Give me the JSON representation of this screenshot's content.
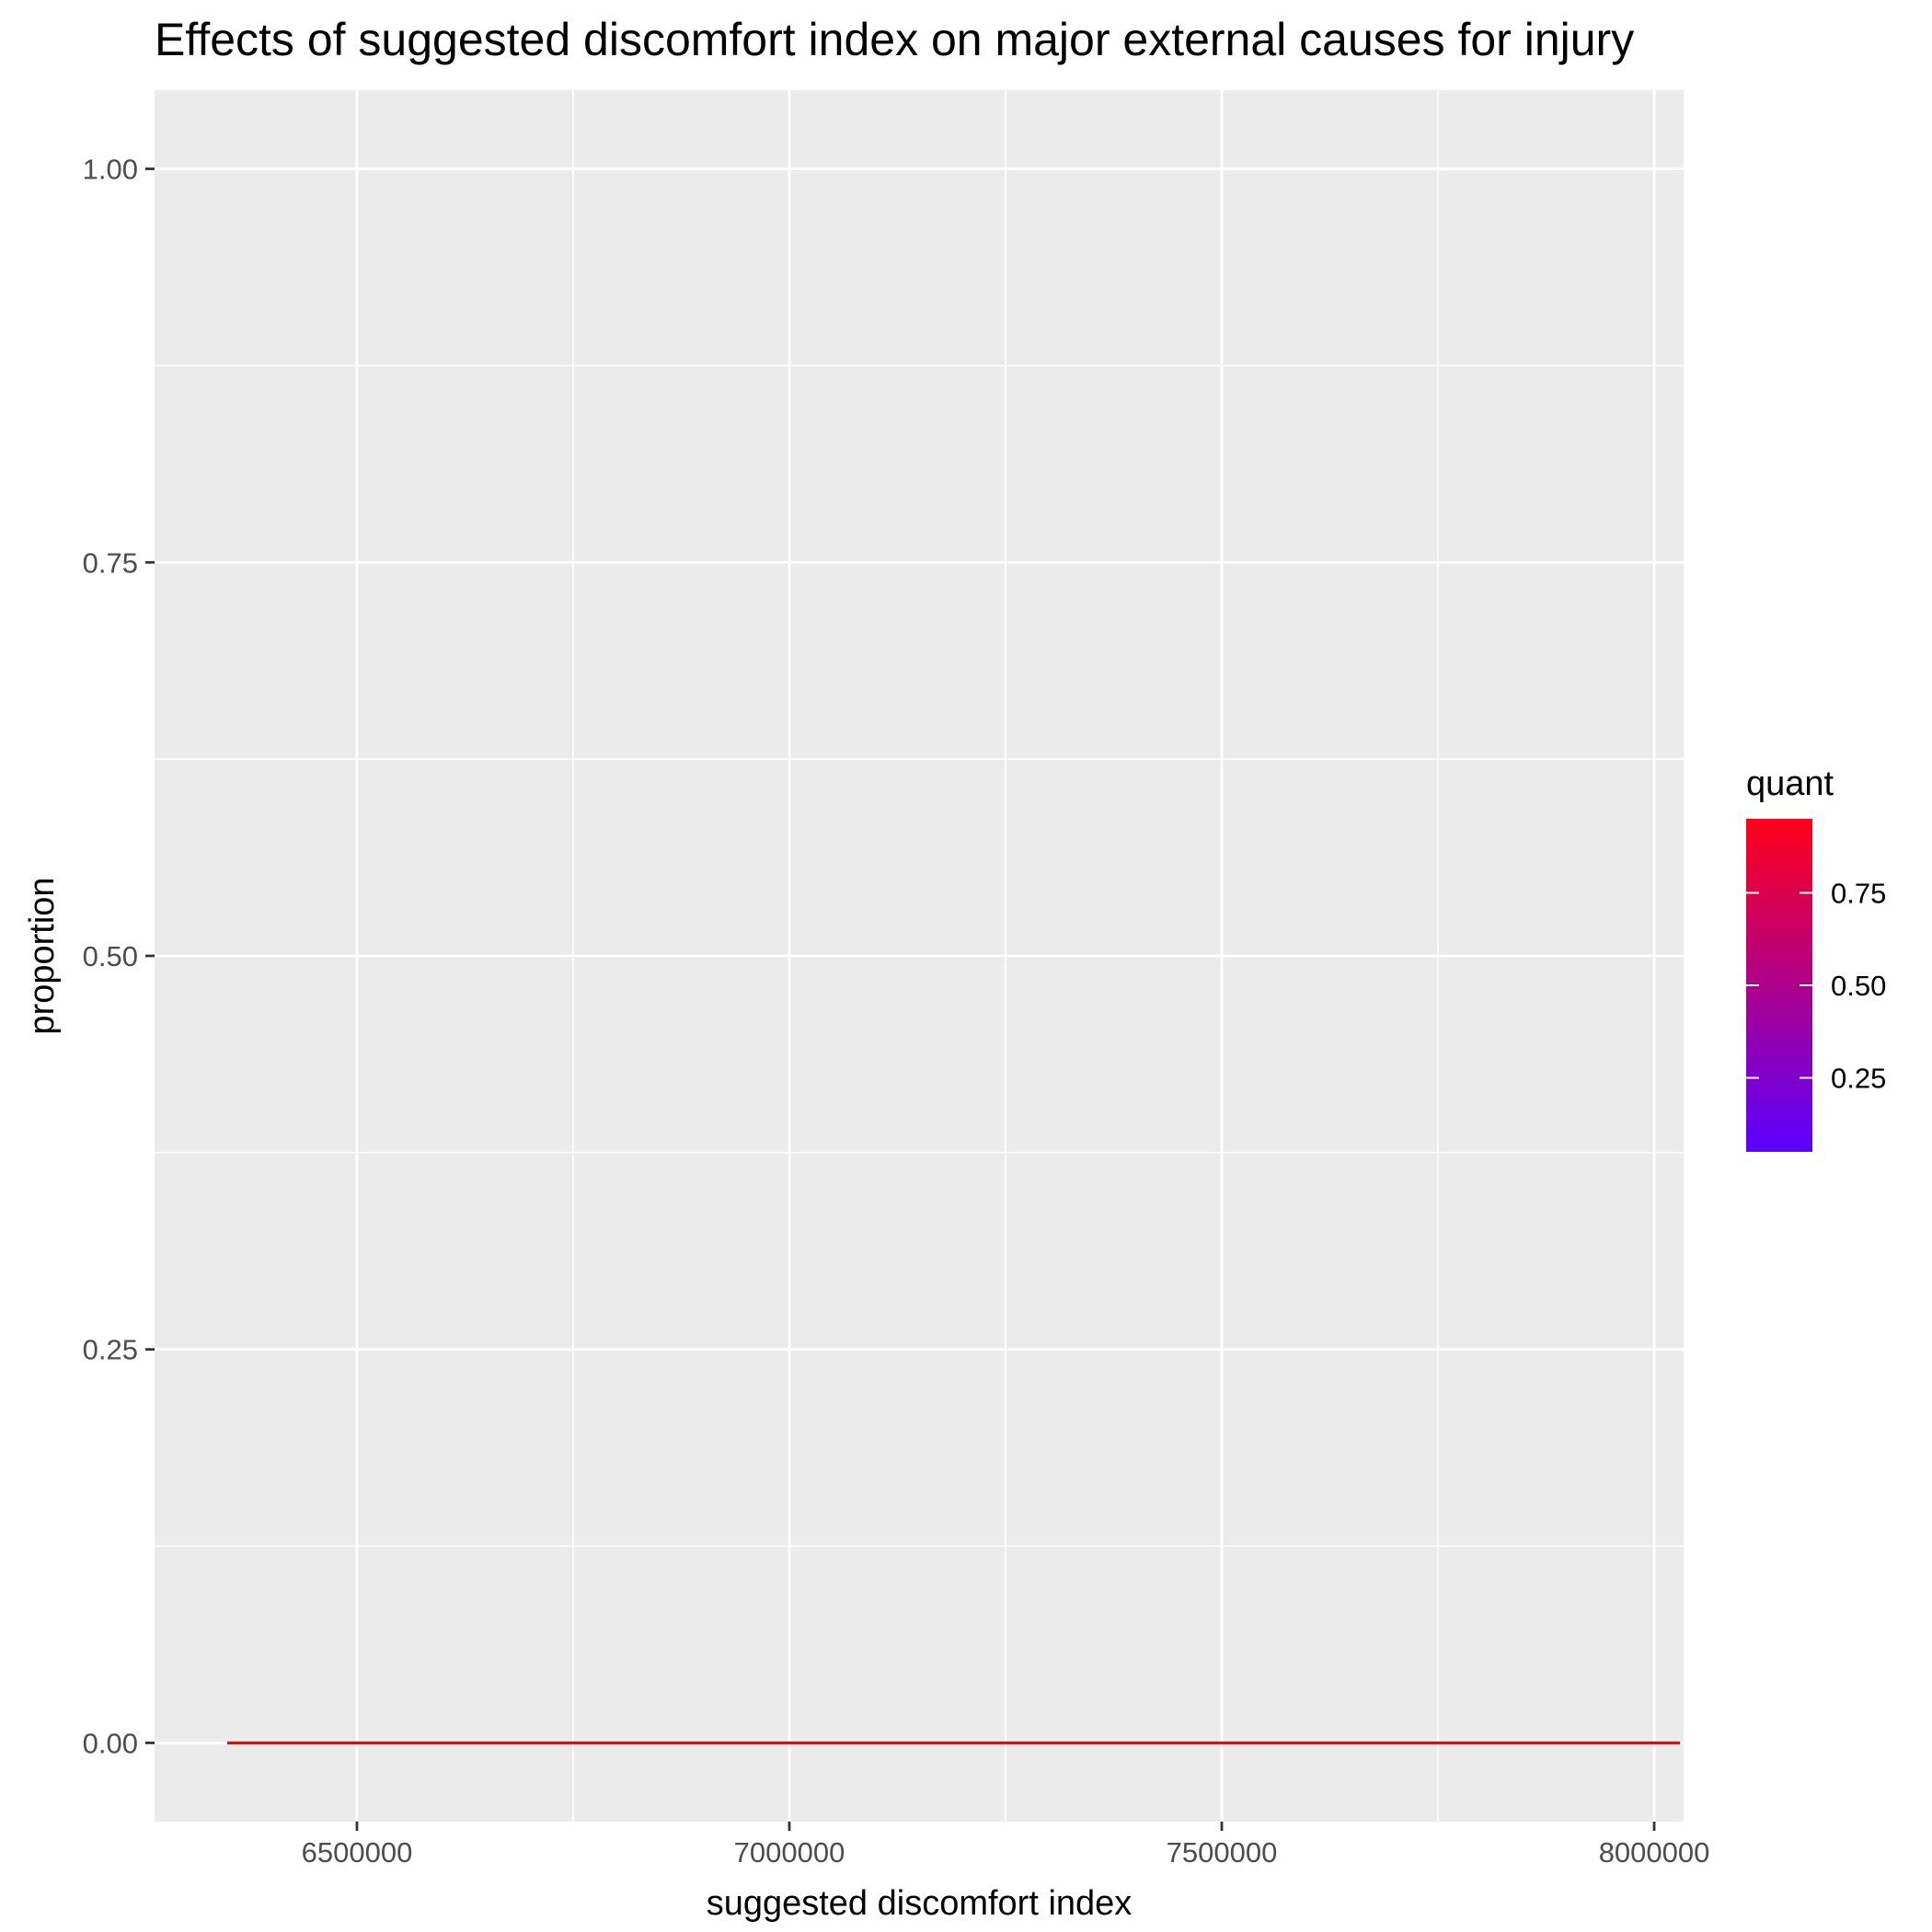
{
  "chart_data": {
    "type": "line",
    "title": "Effects of suggested discomfort index on major external causes for injury",
    "xlabel": "suggested discomfort index",
    "ylabel": "proportion",
    "xlim": [
      6266000,
      8034000
    ],
    "ylim": [
      -0.05,
      1.05
    ],
    "x_ticks": [
      6500000,
      7000000,
      7500000,
      8000000
    ],
    "x_tick_labels": [
      "6500000",
      "7000000",
      "7500000",
      "8000000"
    ],
    "y_ticks": [
      0,
      0.25,
      0.5,
      0.75,
      1
    ],
    "y_tick_labels": [
      "0.00",
      "0.25",
      "0.50",
      "0.75",
      "1.00"
    ],
    "grid": true,
    "series": [
      {
        "color": "#ff0000",
        "x": [
          6350000,
          8030000
        ],
        "y": [
          0,
          0
        ]
      }
    ],
    "legend": {
      "title": "quant",
      "placement": "right",
      "type": "colorbar",
      "low_color": "#5a00ff",
      "high_color": "#ff0019",
      "range": [
        0.05,
        0.95
      ],
      "ticks": [
        0.25,
        0.5,
        0.75
      ],
      "tick_labels": [
        "0.25",
        "0.50",
        "0.75"
      ]
    },
    "panel_background": "#ebebeb",
    "grid_color": "#ffffff"
  }
}
